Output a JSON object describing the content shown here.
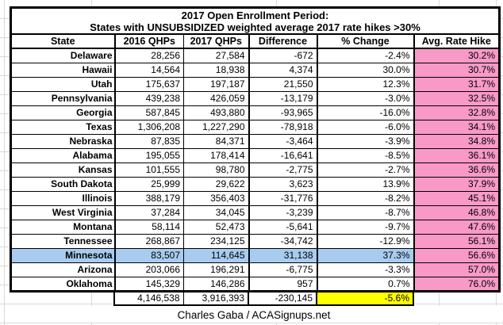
{
  "colors": {
    "pink": "#F899C8",
    "blue": "#A8CCF0",
    "yellow": "#FFFF00",
    "grid": "#D9D9D9",
    "border": "#000000"
  },
  "chart_data": {
    "type": "table",
    "title": "2017 Open Enrollment Period:",
    "subtitle": "States with UNSUBSIDIZED weighted average 2017 rate hikes >30%",
    "columns": [
      "State",
      "2016 QHPs",
      "2017 QHPs",
      "Difference",
      "% Change",
      "Avg. Rate Hike"
    ],
    "rows": [
      [
        "Delaware",
        "28,256",
        "27,584",
        "-672",
        "-2.4%",
        "30.2%"
      ],
      [
        "Hawaii",
        "14,564",
        "18,938",
        "4,374",
        "30.0%",
        "30.7%"
      ],
      [
        "Utah",
        "175,637",
        "197,187",
        "21,550",
        "12.3%",
        "31.7%"
      ],
      [
        "Pennsylvania",
        "439,238",
        "426,059",
        "-13,179",
        "-3.0%",
        "32.5%"
      ],
      [
        "Georgia",
        "587,845",
        "493,880",
        "-93,965",
        "-16.0%",
        "32.8%"
      ],
      [
        "Texas",
        "1,306,208",
        "1,227,290",
        "-78,918",
        "-6.0%",
        "34.1%"
      ],
      [
        "Nebraska",
        "87,835",
        "84,371",
        "-3,464",
        "-3.9%",
        "34.8%"
      ],
      [
        "Alabama",
        "195,055",
        "178,414",
        "-16,641",
        "-8.5%",
        "36.1%"
      ],
      [
        "Kansas",
        "101,555",
        "98,780",
        "-2,775",
        "-2.7%",
        "36.6%"
      ],
      [
        "South Dakota",
        "25,999",
        "29,622",
        "3,623",
        "13.9%",
        "37.9%"
      ],
      [
        "Illinois",
        "388,179",
        "356,403",
        "-31,776",
        "-8.2%",
        "45.1%"
      ],
      [
        "West Virginia",
        "37,284",
        "34,045",
        "-3,239",
        "-8.7%",
        "46.8%"
      ],
      [
        "Montana",
        "58,114",
        "52,473",
        "-5,641",
        "-9.7%",
        "47.6%"
      ],
      [
        "Tennessee",
        "268,867",
        "234,125",
        "-34,742",
        "-12.9%",
        "56.1%"
      ],
      [
        "Minnesota",
        "83,507",
        "114,645",
        "31,138",
        "37.3%",
        "56.6%"
      ],
      [
        "Arizona",
        "203,066",
        "196,291",
        "-6,775",
        "-3.3%",
        "57.0%"
      ],
      [
        "Oklahoma",
        "145,329",
        "146,286",
        "957",
        "0.7%",
        "76.0%"
      ]
    ],
    "highlighted_state": "Minnesota",
    "totals_row": [
      "4,146,538",
      "3,916,393",
      "-230,145",
      "-5.6%"
    ],
    "footer": "Charles Gaba / ACASignups.net",
    "layout": {
      "rate_hike_column_fill": "pink",
      "highlight_row_fill": "blue",
      "total_pct_change_fill": "yellow",
      "grid": "spreadsheet-faint"
    }
  }
}
